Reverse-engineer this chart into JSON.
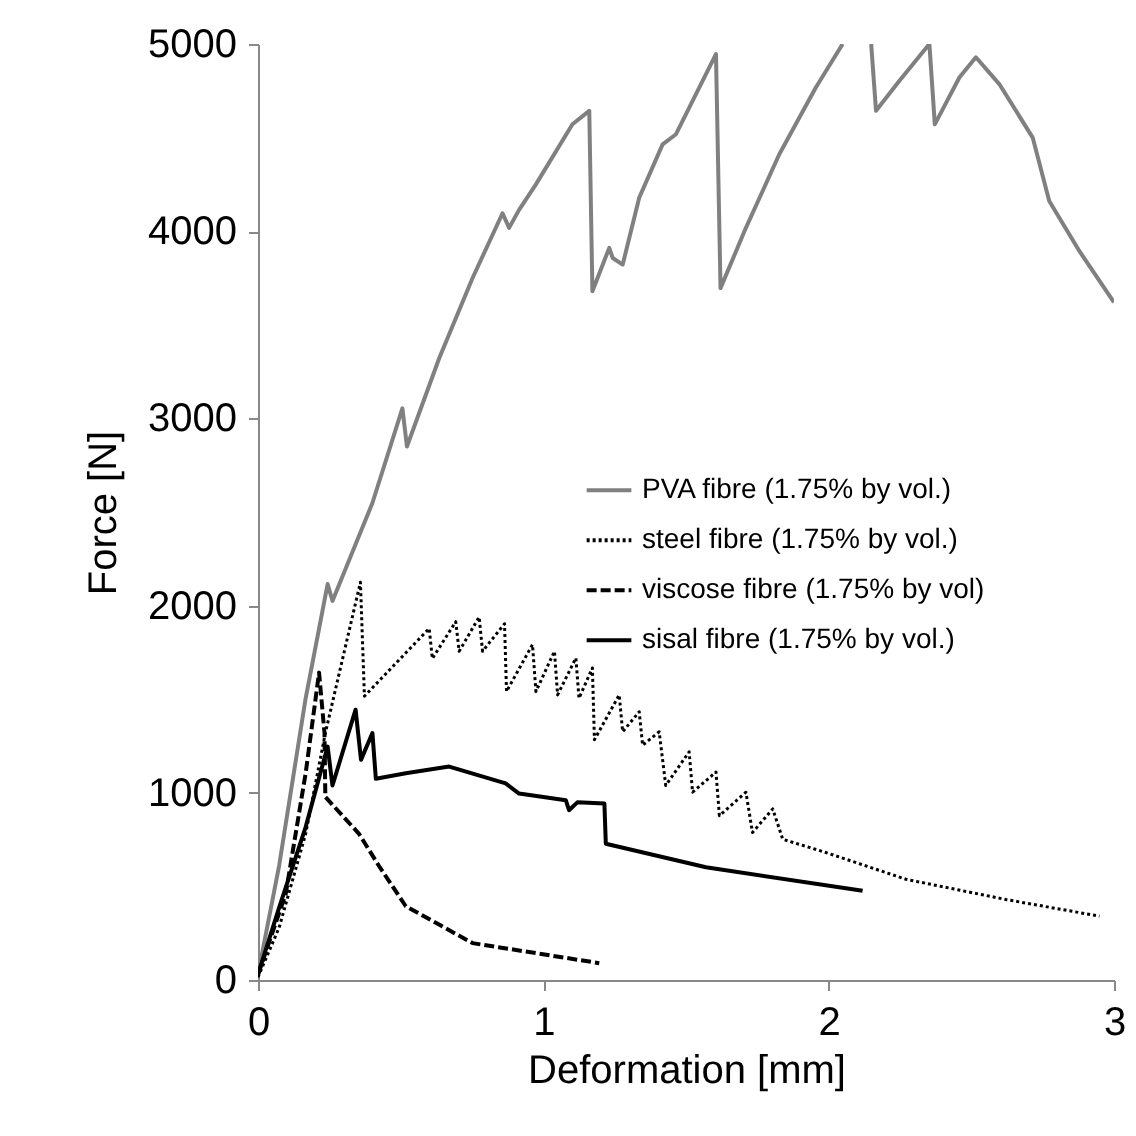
{
  "chart_data": {
    "type": "line",
    "xlabel": "Deformation [mm]",
    "ylabel": "Force [N]",
    "xlim": [
      0,
      3
    ],
    "xticks": [
      0,
      1,
      2,
      3
    ],
    "ylim": [
      0,
      5000
    ],
    "yticks": [
      0,
      1000,
      2000,
      3000,
      4000,
      5000
    ],
    "grid": false,
    "legend": "right",
    "series": [
      {
        "name": "PVA fibre (1.75% by vol.)",
        "color": "#808080",
        "line_style": "solid",
        "x": [
          0,
          0.074,
          0.167,
          0.244,
          0.261,
          0.401,
          0.506,
          0.522,
          0.635,
          0.752,
          0.857,
          0.88,
          0.915,
          0.974,
          1.102,
          1.161,
          1.172,
          1.231,
          1.243,
          1.278,
          1.336,
          1.418,
          1.465,
          1.605,
          1.621,
          1.71,
          1.827,
          1.955,
          2.049,
          2.1,
          2.149,
          2.166,
          2.248,
          2.353,
          2.372,
          2.458,
          2.516,
          2.598,
          2.715,
          2.773,
          2.879,
          3.0
        ],
        "values": [
          30,
          610,
          1505,
          2115,
          2025,
          2548,
          3054,
          2850,
          3321,
          3750,
          4096,
          4018,
          4114,
          4250,
          4571,
          4643,
          3679,
          3911,
          3857,
          3821,
          4179,
          4464,
          4518,
          4946,
          3696,
          4018,
          4411,
          4768,
          5000,
          null,
          5000,
          4643,
          4804,
          5000,
          4571,
          4821,
          4929,
          4786,
          4500,
          4161,
          3893,
          3620
        ]
      },
      {
        "name": "steel fibre (1.75% by vol.)",
        "color": "#000000",
        "line_style": "dotted",
        "x": [
          0,
          0.074,
          0.167,
          0.236,
          0.307,
          0.359,
          0.373,
          0.6,
          0.611,
          0.693,
          0.705,
          0.775,
          0.787,
          0.864,
          0.871,
          0.962,
          0.974,
          1.039,
          1.05,
          1.114,
          1.125,
          1.172,
          1.179,
          1.266,
          1.278,
          1.336,
          1.348,
          1.406,
          1.429,
          1.511,
          1.523,
          1.605,
          1.617,
          1.71,
          1.733,
          1.804,
          1.839,
          1.99,
          2.271,
          2.621,
          2.949
        ],
        "values": [
          15,
          280,
          780,
          1319,
          1785,
          2125,
          1516,
          1878,
          1717,
          1914,
          1756,
          1939,
          1756,
          1903,
          1541,
          1792,
          1541,
          1756,
          1523,
          1720,
          1505,
          1667,
          1283,
          1523,
          1326,
          1433,
          1254,
          1326,
          1039,
          1219,
          1003,
          1111,
          878,
          1003,
          788,
          914,
          752,
          681,
          538,
          430,
          341
        ]
      },
      {
        "name": "viscose fibre (1.75% by vol)",
        "color": "#000000",
        "line_style": "dashed",
        "x": [
          0,
          0.097,
          0.167,
          0.214,
          0.233,
          0.236,
          0.354,
          0.424,
          0.518,
          0.752,
          1.196
        ],
        "values": [
          29,
          459,
          1104,
          1642,
          1320,
          978,
          781,
          609,
          394,
          197,
          90
        ]
      },
      {
        "name": "sisal fibre (1.75% by vol.)",
        "color": "#000000",
        "line_style": "solid",
        "x": [
          0,
          0.074,
          0.167,
          0.244,
          0.261,
          0.342,
          0.361,
          0.401,
          0.413,
          0.518,
          0.67,
          0.868,
          0.915,
          1.079,
          1.09,
          1.12,
          1.214,
          1.219,
          1.57,
          2.119
        ],
        "values": [
          30,
          387,
          817,
          1247,
          1039,
          1444,
          1176,
          1319,
          1075,
          1104,
          1140,
          1050,
          996,
          960,
          907,
          950,
          943,
          728,
          602,
          477
        ]
      }
    ]
  }
}
